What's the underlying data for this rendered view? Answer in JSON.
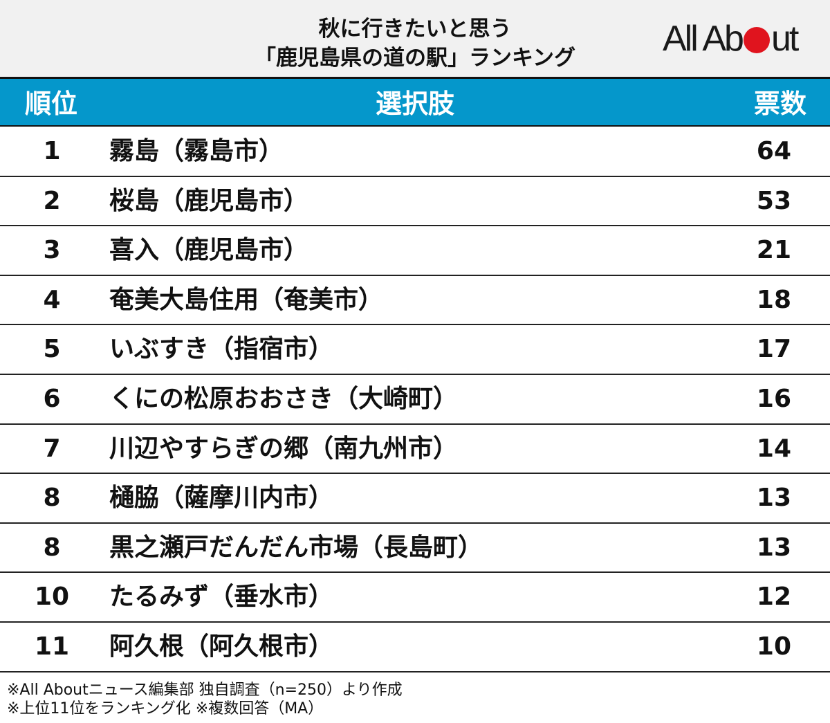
{
  "title": {
    "line1": "秋に行きたいと思う",
    "line2": "「鹿児島県の道の駅」ランキング"
  },
  "logo": {
    "text_before": "All Ab",
    "text_after": "ut",
    "dot_color": "#e0141e"
  },
  "header": {
    "rank_label": "順位",
    "choice_label": "選択肢",
    "votes_label": "票数",
    "background": "#0597cb"
  },
  "rows": [
    {
      "rank": "1",
      "name": "霧島（霧島市）",
      "votes": "64"
    },
    {
      "rank": "2",
      "name": "桜島（鹿児島市）",
      "votes": "53"
    },
    {
      "rank": "3",
      "name": "喜入（鹿児島市）",
      "votes": "21"
    },
    {
      "rank": "4",
      "name": "奄美大島住用（奄美市）",
      "votes": "18"
    },
    {
      "rank": "5",
      "name": "いぶすき（指宿市）",
      "votes": "17"
    },
    {
      "rank": "6",
      "name": "くにの松原おおさき（大崎町）",
      "votes": "16"
    },
    {
      "rank": "7",
      "name": "川辺やすらぎの郷（南九州市）",
      "votes": "14"
    },
    {
      "rank": "8",
      "name": "樋脇（薩摩川内市）",
      "votes": "13"
    },
    {
      "rank": "8",
      "name": "黒之瀬戸だんだん市場（長島町）",
      "votes": "13"
    },
    {
      "rank": "10",
      "name": "たるみず（垂水市）",
      "votes": "12"
    },
    {
      "rank": "11",
      "name": "阿久根（阿久根市）",
      "votes": "10"
    }
  ],
  "notes": {
    "line1": "※All Aboutニュース編集部 独自調査（n=250）より作成",
    "line2": "※上位11位をランキング化 ※複数回答（MA）"
  },
  "chart_data": {
    "type": "table",
    "title": "秋に行きたいと思う「鹿児島県の道の駅」ランキング",
    "columns": [
      "順位",
      "選択肢",
      "票数"
    ],
    "categories": [
      "霧島（霧島市）",
      "桜島（鹿児島市）",
      "喜入（鹿児島市）",
      "奄美大島住用（奄美市）",
      "いぶすき（指宿市）",
      "くにの松原おおさき（大崎町）",
      "川辺やすらぎの郷（南九州市）",
      "樋脇（薩摩川内市）",
      "黒之瀬戸だんだん市場（長島町）",
      "たるみず（垂水市）",
      "阿久根（阿久根市）"
    ],
    "ranks": [
      1,
      2,
      3,
      4,
      5,
      6,
      7,
      8,
      8,
      10,
      11
    ],
    "values": [
      64,
      53,
      21,
      18,
      17,
      16,
      14,
      13,
      13,
      12,
      10
    ],
    "notes": [
      "※All Aboutニュース編集部 独自調査（n=250）より作成",
      "※上位11位をランキング化 ※複数回答（MA）"
    ]
  }
}
